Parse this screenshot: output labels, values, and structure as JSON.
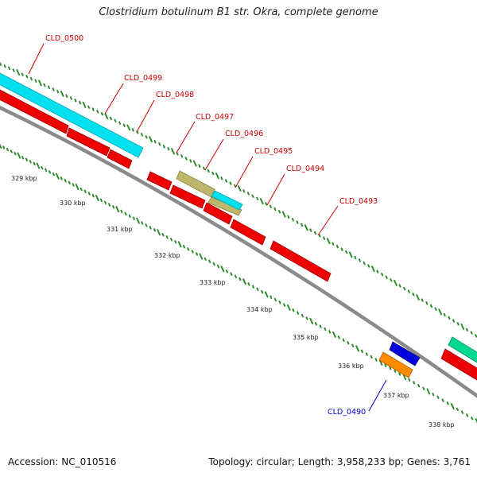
{
  "title": "Clostridium botulinum B1 str. Okra, complete genome",
  "footer": {
    "accession": "Accession: NC_010516",
    "summary": "Topology: circular; Length: 3,958,233 bp; Genes: 3,761"
  },
  "colors": {
    "backbone": "#8a8a8a",
    "tick_dots": "#2e8b2e",
    "label_red": "#cc0000",
    "label_blue": "#0000cc"
  },
  "scale": {
    "unit": "kbp",
    "labels": [
      {
        "kbp": 329,
        "text": "329 kbp"
      },
      {
        "kbp": 330,
        "text": "330 kbp"
      },
      {
        "kbp": 331,
        "text": "331 kbp"
      },
      {
        "kbp": 332,
        "text": "332 kbp"
      },
      {
        "kbp": 333,
        "text": "333 kbp"
      },
      {
        "kbp": 334,
        "text": "334 kbp"
      },
      {
        "kbp": 335,
        "text": "335 kbp"
      },
      {
        "kbp": 336,
        "text": "336 kbp"
      },
      {
        "kbp": 337,
        "text": "337 kbp"
      },
      {
        "kbp": 338,
        "text": "338 kbp"
      }
    ]
  },
  "gene_labels": [
    {
      "name": "CLD_0500",
      "color": "#cc0000"
    },
    {
      "name": "CLD_0499",
      "color": "#cc0000"
    },
    {
      "name": "CLD_0498",
      "color": "#cc0000"
    },
    {
      "name": "CLD_0497",
      "color": "#cc0000"
    },
    {
      "name": "CLD_0496",
      "color": "#cc0000"
    },
    {
      "name": "CLD_0495",
      "color": "#cc0000"
    },
    {
      "name": "CLD_0494",
      "color": "#cc0000"
    },
    {
      "name": "CLD_0493",
      "color": "#cc0000"
    },
    {
      "name": "CLD_0490",
      "color": "#0000cc"
    }
  ],
  "feature_colors": {
    "red": "#ee0000",
    "cyan": "#00e0ee",
    "khaki": "#bdb76b",
    "blue": "#0000dd",
    "orange": "#ff8c00",
    "green": "#00d890"
  }
}
